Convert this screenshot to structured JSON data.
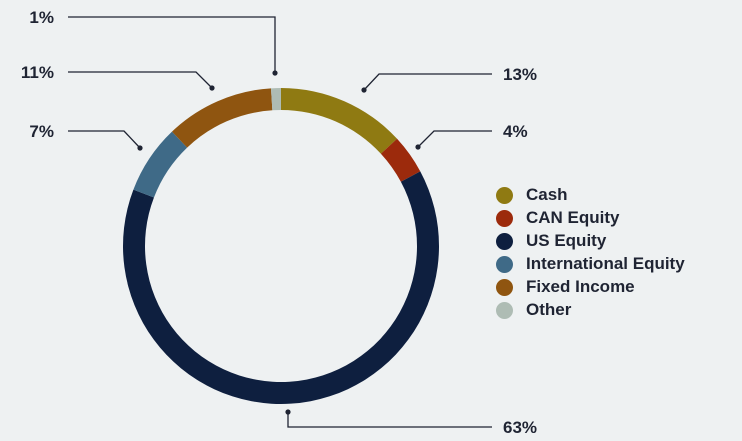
{
  "chart_data": {
    "type": "pie",
    "variant": "donut",
    "title": "",
    "categories": [
      "Cash",
      "CAN Equity",
      "US Equity",
      "International Equity",
      "Fixed Income",
      "Other"
    ],
    "values": [
      13,
      4,
      63,
      7,
      11,
      1
    ],
    "value_labels": [
      "13%",
      "4%",
      "63%",
      "7%",
      "11%",
      "1%"
    ],
    "colors": [
      "#8f7a12",
      "#9c2a0c",
      "#0e1f3f",
      "#3f6a87",
      "#8f5510",
      "#aebcb4"
    ],
    "legend_position": "right",
    "start_angle": "top, clockwise"
  },
  "legend": {
    "items": [
      {
        "label": "Cash",
        "color": "#8f7a12"
      },
      {
        "label": "CAN Equity",
        "color": "#9c2a0c"
      },
      {
        "label": "US Equity",
        "color": "#0e1f3f"
      },
      {
        "label": "International Equity",
        "color": "#3f6a87"
      },
      {
        "label": "Fixed Income",
        "color": "#8f5510"
      },
      {
        "label": "Other",
        "color": "#aebcb4"
      }
    ]
  },
  "colors": {
    "background": "#eef1f2",
    "leader_line": "#1f2433",
    "text": "#1f2433"
  }
}
